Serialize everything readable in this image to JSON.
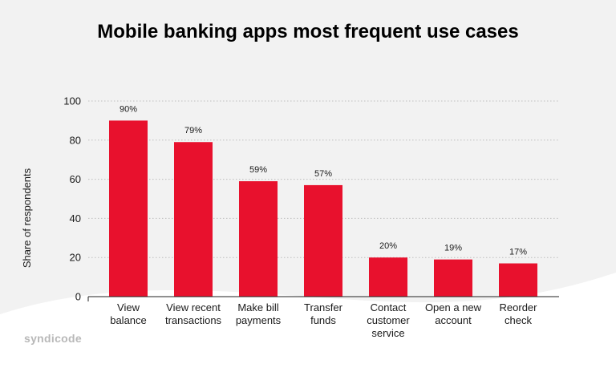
{
  "title": "Mobile banking apps most frequent use cases",
  "logo": "syndicode",
  "colors": {
    "bar": "#e8112d",
    "background": "#f2f2f2",
    "wave": "#ffffff",
    "grid": "#bdbdbd"
  },
  "chart_data": {
    "type": "bar",
    "title": "Mobile banking apps most frequent use cases",
    "xlabel": "",
    "ylabel": "Share of respondents",
    "ylim": [
      0,
      100
    ],
    "yticks": [
      0,
      20,
      40,
      60,
      80,
      100
    ],
    "grid": true,
    "categories": [
      [
        "View",
        "balance"
      ],
      [
        "View recent",
        "transactions"
      ],
      [
        "Make bill",
        "payments"
      ],
      [
        "Transfer",
        "funds"
      ],
      [
        "Contact",
        "customer",
        "service"
      ],
      [
        "Open a new",
        "account"
      ],
      [
        "Reorder",
        "check"
      ]
    ],
    "values": [
      90,
      79,
      59,
      57,
      20,
      19,
      17
    ],
    "data_labels": [
      "90%",
      "79%",
      "59%",
      "57%",
      "20%",
      "19%",
      "17%"
    ]
  }
}
